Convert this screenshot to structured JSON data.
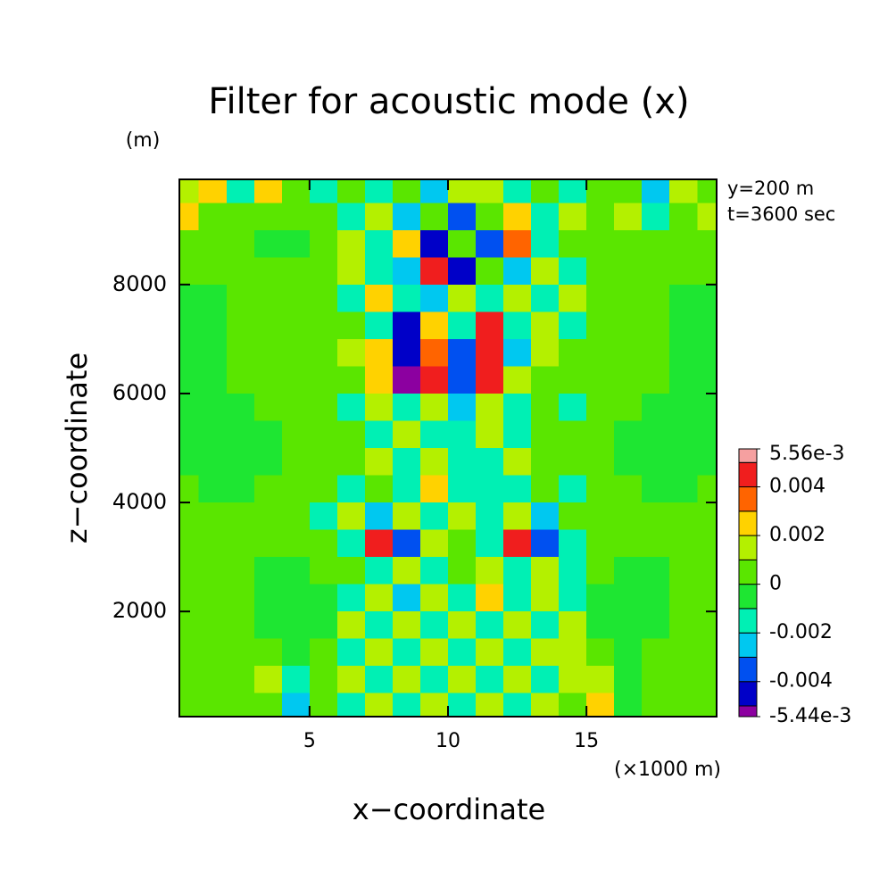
{
  "chart_data": {
    "type": "contour",
    "title": "Filter for acoustic mode (x)",
    "xlabel": "x−coordinate",
    "ylabel": "z−coordinate",
    "xunit": "(×1000 m)",
    "yunit": "(m)",
    "annotations": [
      "y=200 m",
      "t=3600 sec"
    ],
    "xlim": [
      0.3,
      19.7
    ],
    "ylim": [
      70,
      9930
    ],
    "xticks": [
      5,
      10,
      15
    ],
    "yticks": [
      2000,
      4000,
      6000,
      8000
    ],
    "x": [
      0.5,
      1.5,
      2.5,
      3.5,
      4.5,
      5.5,
      6.5,
      7.5,
      8.5,
      9.5,
      10.5,
      11.5,
      12.5,
      13.5,
      14.5,
      15.5,
      16.5,
      17.5,
      18.5,
      19.5
    ],
    "y": [
      9750,
      9250,
      8750,
      8250,
      7750,
      7250,
      6750,
      6250,
      5750,
      5250,
      4750,
      4250,
      3750,
      3250,
      2750,
      2250,
      1750,
      1250,
      750,
      250
    ],
    "z": [
      [
        0.0015,
        0.0025,
        -0.0015,
        0.003,
        0.0005,
        -0.0015,
        0.0003,
        -0.001,
        0.0005,
        -0.002,
        0.0015,
        0.002,
        -0.0015,
        0.0005,
        -0.001,
        0.0002,
        0.001,
        -0.002,
        0.002,
        0.001
      ],
      [
        0.0025,
        0.001,
        0.0005,
        0.0003,
        0.0002,
        0.0005,
        -0.0015,
        0.002,
        -0.0025,
        0.001,
        -0.003,
        0.001,
        0.003,
        -0.0015,
        0.002,
        0.0005,
        0.0015,
        -0.0015,
        0.0005,
        0.002
      ],
      [
        0.0005,
        0.0003,
        0.0002,
        -0.0003,
        -0.0003,
        0.0005,
        0.0015,
        -0.001,
        0.003,
        -0.004,
        0.001,
        -0.003,
        0.004,
        -0.001,
        0.0005,
        0.0003,
        0.0002,
        0.0003,
        0.0005,
        0.0003
      ],
      [
        0.0005,
        0.0005,
        0.0004,
        0.0004,
        0.0003,
        0.0003,
        0.0015,
        -0.0015,
        -0.002,
        0.0045,
        -0.0045,
        0.001,
        -0.002,
        0.002,
        -0.0015,
        0.0003,
        0.0003,
        0.0004,
        0.0004,
        0.0005
      ],
      [
        -0.0004,
        -0.0004,
        0.0004,
        0.0004,
        0.0003,
        0.0005,
        -0.0015,
        0.003,
        -0.0012,
        -0.002,
        0.0015,
        -0.0015,
        0.0015,
        -0.0015,
        0.0015,
        0.0004,
        0.0004,
        0.0004,
        -0.0004,
        -0.0004
      ],
      [
        -0.0004,
        -0.0004,
        0.0004,
        0.0004,
        0.0004,
        0.0005,
        0.001,
        -0.0015,
        -0.004,
        0.0025,
        -0.0015,
        0.0045,
        -0.0015,
        0.0015,
        -0.001,
        0.0005,
        0.0004,
        0.0004,
        -0.0004,
        -0.0004
      ],
      [
        -0.0004,
        -0.0004,
        0.0004,
        0.0004,
        0.0004,
        0.0005,
        0.0015,
        0.0025,
        -0.0045,
        0.004,
        -0.003,
        0.005,
        -0.002,
        0.0015,
        0.0005,
        0.0005,
        0.0004,
        0.0004,
        -0.0004,
        -0.0004
      ],
      [
        -0.0004,
        -0.0004,
        0.0004,
        0.0004,
        0.0004,
        0.0003,
        0.0005,
        0.003,
        -0.005,
        0.0045,
        -0.0035,
        0.0045,
        0.002,
        0.0005,
        0.0003,
        0.0003,
        0.0004,
        0.0004,
        -0.0004,
        -0.0004
      ],
      [
        -0.0004,
        -0.0004,
        -0.0004,
        0.0004,
        0.0004,
        0.0003,
        -0.0012,
        0.0015,
        -0.0015,
        0.002,
        -0.002,
        0.0015,
        -0.0015,
        0.001,
        -0.0012,
        0.0003,
        0.0004,
        -0.0004,
        -0.0004,
        -0.0004
      ],
      [
        -0.0004,
        -0.0004,
        -0.0004,
        -0.0004,
        0.0004,
        0.0004,
        0.0004,
        -0.0015,
        0.0015,
        -0.0015,
        -0.0012,
        0.0015,
        -0.0015,
        0.0005,
        0.0004,
        0.0004,
        -0.0004,
        -0.0004,
        -0.0004,
        -0.0004
      ],
      [
        -0.0004,
        -0.0004,
        -0.0004,
        -0.0004,
        0.0004,
        0.0004,
        0.0005,
        0.0015,
        -0.0015,
        0.0015,
        -0.0015,
        -0.0015,
        0.0015,
        0.0005,
        0.0004,
        0.0004,
        -0.0004,
        -0.0004,
        -0.0004,
        -0.0004
      ],
      [
        0.0004,
        -0.0004,
        -0.0004,
        0.0004,
        0.0004,
        0.0005,
        -0.0015,
        0.001,
        -0.0015,
        0.0025,
        -0.0015,
        -0.001,
        -0.0015,
        0.001,
        -0.001,
        0.0005,
        0.0004,
        -0.0004,
        -0.0004,
        0.0004
      ],
      [
        0.0004,
        0.0004,
        0.0004,
        0.0004,
        0.0003,
        -0.001,
        0.0015,
        -0.002,
        0.002,
        -0.0015,
        0.0015,
        -0.0015,
        0.0015,
        -0.002,
        0.001,
        0.0003,
        0.0004,
        0.0004,
        0.0004,
        0.0004
      ],
      [
        0.0004,
        0.0004,
        0.0004,
        0.0004,
        0.0003,
        0.0004,
        -0.001,
        0.0045,
        -0.0035,
        0.0015,
        0.0005,
        -0.0015,
        0.0045,
        -0.0035,
        -0.001,
        0.0004,
        0.0003,
        0.0004,
        0.0004,
        0.0004
      ],
      [
        0.0004,
        0.0004,
        0.0004,
        -0.0004,
        -0.0004,
        0.0004,
        0.001,
        -0.0015,
        0.002,
        -0.0015,
        0.001,
        0.0015,
        -0.0015,
        0.002,
        -0.001,
        0.0004,
        -0.0004,
        -0.0004,
        0.0004,
        0.0004
      ],
      [
        0.0004,
        0.0004,
        0.0004,
        -0.0004,
        -0.0004,
        -0.0004,
        -0.0015,
        0.0015,
        -0.0025,
        0.0015,
        -0.0015,
        0.003,
        -0.0015,
        0.0015,
        -0.0015,
        -0.0004,
        -0.0004,
        -0.0004,
        0.0004,
        0.0004
      ],
      [
        0.0004,
        0.0004,
        0.0004,
        -0.0004,
        -0.0004,
        -0.0004,
        0.0015,
        -0.0012,
        0.0015,
        -0.0015,
        0.0015,
        -0.0012,
        0.0015,
        -0.0012,
        0.0015,
        -0.0004,
        -0.0004,
        -0.0004,
        0.0004,
        0.0004
      ],
      [
        0.0004,
        0.0004,
        0.0004,
        0.0004,
        -0.0004,
        0.0004,
        -0.0012,
        0.0015,
        -0.0012,
        0.0015,
        -0.0012,
        0.0015,
        -0.0012,
        0.0015,
        0.0015,
        0.0004,
        -0.0004,
        0.0004,
        0.0004,
        0.0004
      ],
      [
        0.0004,
        0.0004,
        0.0004,
        0.0015,
        -0.0015,
        0.0004,
        0.0015,
        -0.0012,
        0.0015,
        -0.0012,
        0.0015,
        -0.0012,
        0.0015,
        -0.0012,
        0.0015,
        0.0015,
        -0.0004,
        0.0004,
        0.0004,
        0.0004
      ],
      [
        0.0004,
        0.0004,
        0.0004,
        0.0004,
        -0.002,
        0.0004,
        -0.0012,
        0.0015,
        -0.0012,
        0.002,
        -0.0012,
        0.0015,
        -0.0012,
        0.0015,
        0.0004,
        0.003,
        -0.0004,
        0.0004,
        0.0004,
        0.0004
      ]
    ],
    "levels": [
      -0.00544,
      -0.005,
      -0.004,
      -0.003,
      -0.002,
      -0.001,
      0,
      0.001,
      0.002,
      0.003,
      0.004,
      0.005,
      0.00556
    ],
    "colors": [
      "#8c00a0",
      "#0000c8",
      "#0050f0",
      "#00c8f0",
      "#00f0b4",
      "#1ee632",
      "#5ae600",
      "#b4f000",
      "#ffd200",
      "#ff6400",
      "#f01e1e",
      "#f5a0a0"
    ],
    "colorbar_ticks": [
      {
        "value": 0.00556,
        "label": "5.56e-3"
      },
      0.004,
      0.002,
      0,
      -0.002,
      -0.004,
      {
        "value": -0.00544,
        "label": "-5.44e-3"
      }
    ]
  }
}
